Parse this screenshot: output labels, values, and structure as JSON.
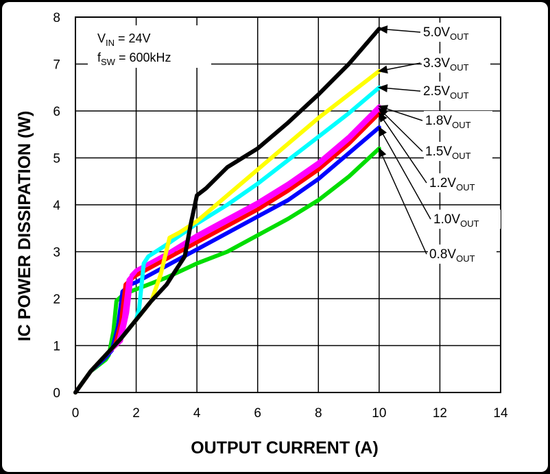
{
  "chart_data": {
    "type": "line",
    "title": "",
    "xlabel": "OUTPUT CURRENT (A)",
    "ylabel": "IC POWER DISSIPATION (W)",
    "xlim": [
      0,
      14
    ],
    "ylim": [
      0,
      8
    ],
    "xticks": [
      "0",
      "2",
      "4",
      "6",
      "8",
      "10",
      "12",
      "14"
    ],
    "yticks": [
      "0",
      "1",
      "2",
      "3",
      "4",
      "5",
      "6",
      "7",
      "8"
    ],
    "grid": true,
    "annotation": {
      "vin_main": "V",
      "vin_sub": "IN",
      "vin_val": " = 24V",
      "fsw_main": "f",
      "fsw_sub": "SW",
      "fsw_val": " = 600kHz"
    },
    "series": [
      {
        "name": "0.8V",
        "sub": "OUT",
        "color": "#00dd00",
        "x": [
          0,
          0.5,
          1.0,
          1.1,
          1.25,
          1.35,
          1.6,
          2,
          3,
          4,
          5,
          6,
          7,
          8,
          9,
          10
        ],
        "y": [
          0,
          0.45,
          0.7,
          0.8,
          1.3,
          1.95,
          2.1,
          2.2,
          2.45,
          2.75,
          3.0,
          3.35,
          3.7,
          4.1,
          4.6,
          5.2
        ]
      },
      {
        "name": "1.0V",
        "sub": "OUT",
        "color": "#0000ff",
        "x": [
          0,
          0.5,
          1.0,
          1.2,
          1.4,
          1.55,
          1.8,
          2,
          3,
          4,
          5,
          6,
          7,
          8,
          9,
          10
        ],
        "y": [
          0,
          0.45,
          0.75,
          0.9,
          1.4,
          2.15,
          2.3,
          2.35,
          2.7,
          3.05,
          3.4,
          3.75,
          4.1,
          4.55,
          5.1,
          5.65
        ]
      },
      {
        "name": "1.2V",
        "sub": "OUT",
        "color": "#ff0000",
        "x": [
          0,
          0.5,
          1.0,
          1.3,
          1.5,
          1.65,
          1.9,
          2,
          3,
          4,
          5,
          6,
          7,
          8,
          9,
          10
        ],
        "y": [
          0,
          0.45,
          0.8,
          1.0,
          1.5,
          2.3,
          2.45,
          2.5,
          2.85,
          3.2,
          3.55,
          3.9,
          4.3,
          4.75,
          5.3,
          5.95
        ]
      },
      {
        "name": "1.5V",
        "sub": "OUT",
        "color": "#ff00ff",
        "x": [
          0,
          0.5,
          1.0,
          1.4,
          1.6,
          1.75,
          1.95,
          2,
          3,
          4,
          5,
          6,
          7,
          8,
          9,
          10
        ],
        "y": [
          0,
          0.45,
          0.8,
          1.05,
          1.6,
          2.4,
          2.55,
          2.6,
          2.95,
          3.3,
          3.65,
          4.0,
          4.4,
          4.85,
          5.4,
          6.05
        ]
      },
      {
        "name": "1.8V",
        "sub": "OUT",
        "color": "#ff00ff",
        "x": [
          0,
          0.5,
          1.0,
          1.5,
          1.7,
          1.85,
          2.0,
          3,
          4,
          5,
          6,
          7,
          8,
          9,
          10
        ],
        "y": [
          0,
          0.45,
          0.8,
          1.1,
          1.7,
          2.5,
          2.6,
          2.95,
          3.35,
          3.7,
          4.05,
          4.45,
          4.9,
          5.45,
          6.1
        ]
      },
      {
        "name": "2.5V",
        "sub": "OUT",
        "color": "#00ffff",
        "x": [
          0,
          0.5,
          1.0,
          1.5,
          2.0,
          2.1,
          2.25,
          2.4,
          3,
          4,
          5,
          6,
          7,
          8,
          9,
          10
        ],
        "y": [
          0,
          0.45,
          0.8,
          1.15,
          1.55,
          1.8,
          2.75,
          2.9,
          3.15,
          3.6,
          4.0,
          4.45,
          4.95,
          5.45,
          5.95,
          6.5
        ]
      },
      {
        "name": "3.3V",
        "sub": "OUT",
        "color": "#ffff00",
        "x": [
          0,
          0.5,
          1.0,
          1.5,
          2.0,
          2.5,
          2.8,
          3.1,
          3.4,
          4,
          5,
          6,
          7,
          8,
          9,
          10
        ],
        "y": [
          0,
          0.45,
          0.8,
          1.15,
          1.55,
          1.95,
          2.5,
          3.3,
          3.4,
          3.65,
          4.2,
          4.75,
          5.3,
          5.85,
          6.35,
          6.85
        ]
      },
      {
        "name": "5.0V",
        "sub": "OUT",
        "color": "#000000",
        "x": [
          0,
          0.5,
          1.0,
          1.5,
          2.0,
          2.5,
          3.0,
          3.3,
          3.6,
          3.8,
          4.0,
          4.3,
          5,
          6,
          7,
          8,
          9,
          10
        ],
        "y": [
          0,
          0.45,
          0.8,
          1.15,
          1.55,
          1.95,
          2.3,
          2.6,
          2.9,
          3.6,
          4.2,
          4.35,
          4.8,
          5.2,
          5.75,
          6.35,
          7.0,
          7.75
        ]
      }
    ]
  }
}
